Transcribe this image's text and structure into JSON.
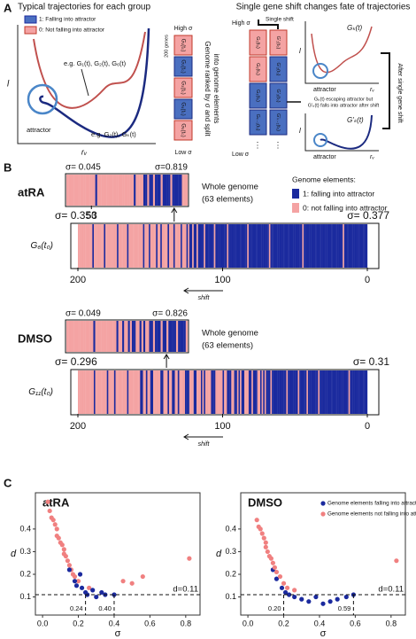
{
  "panel_a": {
    "label": "A",
    "left": {
      "title": "Typical trajectories for each group",
      "legend": [
        "1: Falling into attractor",
        "0: Not falling into attractor"
      ],
      "y_label": "l",
      "x_label": "rᵥ",
      "annotations": [
        "e.g. G₁(t), G₂(t), G₆(t)",
        "attractor",
        "e.g. G₂(t), Gₖ(t)"
      ]
    },
    "middle": {
      "genes": "200 genes",
      "high": "High σ",
      "low": "Low σ",
      "caption": [
        "Genome ranked by σ and split",
        "into genome elements"
      ],
      "boxes": [
        "G₁(t₀)",
        "G₂(t₀)",
        "G₃(t₀)",
        "G₄(t₀)",
        "G₅(t₀)"
      ]
    },
    "right": {
      "title": "Single gene shift changes fate of trajectories",
      "high": "High σ",
      "low": "Low σ",
      "shift": "Single shift",
      "col1": [
        "G₁(t₀)",
        "G₂(t₀)",
        "G₃(t₀)",
        "Gₖ₋₁(t₀)"
      ],
      "col2": [
        "G'₁(t₀)",
        "G'₂(t₀)",
        "G'₃(t₀)",
        "G'ₖ₋₁(t₀)"
      ],
      "dots": "⋮",
      "note": [
        "Gₖ(t) escaping attractor but",
        "G'ₖ(t) falls into attractor after shift"
      ],
      "top_label": "Gₖ(t)",
      "bottom_label": "G'ₖ(t)",
      "attractor": "attractor",
      "side": "After single gene shift",
      "y_label": "l",
      "x_label": "rᵥ"
    }
  },
  "panel_b": {
    "label": "B",
    "legend": {
      "title": "Genome elements:",
      "items": [
        {
          "label": "1: falling into attractor",
          "color": "#1b2a9e"
        },
        {
          "label": "0: not falling into attractor",
          "color": "#f4a3a3"
        }
      ]
    },
    "groups": [
      {
        "name": "atRA",
        "whole": {
          "sigma_left": "σ= 0.045",
          "sigma_right": "σ=0.819",
          "caption": [
            "Whole genome",
            "(63 elements)"
          ],
          "xlim": [
            63,
            0
          ],
          "xticks": [
            50
          ],
          "marker": {
            "label": "G₆(t₀)",
            "value": 7
          },
          "values": [
            0,
            0,
            0,
            0,
            0,
            0,
            0,
            0,
            0,
            0,
            0,
            0,
            0,
            0,
            0,
            1,
            0,
            0,
            0,
            0,
            0,
            0,
            0,
            0,
            0,
            0,
            0,
            0,
            0,
            0,
            0,
            0,
            0,
            0,
            0,
            1,
            0,
            0,
            0,
            0,
            1,
            1,
            0,
            1,
            1,
            0,
            1,
            1,
            1,
            0,
            1,
            1,
            1,
            1,
            0,
            1,
            1,
            1,
            1,
            1,
            0,
            0,
            0
          ]
        },
        "shift": {
          "sigma_left": "σ= 0.353",
          "sigma_right": "σ= 0.377",
          "y_label": "G₆(t₀)",
          "xlim": [
            200,
            0
          ],
          "xticks": [
            200,
            100,
            0
          ],
          "arrow": "shift",
          "values": [
            0,
            0,
            0,
            0,
            0,
            0,
            0,
            0,
            0,
            0,
            1,
            0,
            0,
            0,
            0,
            0,
            0,
            0,
            1,
            0,
            0,
            0,
            0,
            0,
            0,
            0,
            0,
            1,
            0,
            0,
            0,
            0,
            0,
            0,
            1,
            0,
            0,
            0,
            0,
            0,
            0,
            0,
            0,
            0,
            0,
            1,
            0,
            0,
            0,
            1,
            0,
            0,
            0,
            0,
            1,
            0,
            0,
            1,
            0,
            0,
            0,
            0,
            1,
            0,
            0,
            0,
            1,
            0,
            0,
            0,
            0,
            1,
            0,
            0,
            0,
            1,
            0,
            1,
            1,
            0,
            1,
            1,
            0,
            1,
            1,
            1,
            1,
            0,
            1,
            1,
            1,
            1,
            1,
            1,
            0,
            1,
            1,
            1,
            1,
            1,
            1,
            1,
            1,
            0,
            1,
            1,
            1,
            1,
            1,
            1,
            1,
            1,
            1,
            1,
            1,
            1,
            1,
            0,
            1,
            1,
            1,
            1,
            1,
            1,
            1,
            1,
            1,
            1,
            1,
            1,
            1,
            1,
            0,
            1,
            1,
            1,
            1,
            1,
            1,
            1,
            1,
            1,
            1,
            1,
            1,
            1,
            1,
            1,
            1,
            1,
            1,
            1,
            1,
            1,
            1,
            0,
            1,
            1,
            1,
            1,
            1,
            1,
            1,
            1,
            1,
            1,
            1,
            1,
            1,
            1,
            1,
            1,
            1,
            1,
            1,
            1,
            1,
            1,
            1,
            1,
            1,
            1,
            1,
            0,
            1,
            1,
            1,
            1,
            1,
            1,
            1,
            1,
            1,
            1,
            1,
            1,
            1,
            1,
            1,
            1
          ]
        }
      },
      {
        "name": "DMSO",
        "whole": {
          "sigma_left": "σ= 0.049",
          "sigma_right": "σ= 0.826",
          "caption": [
            "Whole genome",
            "(63 elements)"
          ],
          "xlim": [
            63,
            0
          ],
          "xticks": [],
          "marker": {
            "label": "G₁₁(t₀)",
            "value": 11
          },
          "values": [
            0,
            0,
            0,
            0,
            0,
            0,
            0,
            0,
            0,
            0,
            0,
            0,
            0,
            0,
            1,
            0,
            0,
            0,
            0,
            0,
            0,
            0,
            0,
            0,
            0,
            0,
            1,
            0,
            0,
            1,
            0,
            0,
            1,
            0,
            1,
            1,
            0,
            0,
            1,
            0,
            1,
            0,
            0,
            1,
            1,
            0,
            1,
            1,
            1,
            0,
            1,
            1,
            0,
            1,
            1,
            1,
            1,
            0,
            1,
            1,
            1,
            1,
            0
          ]
        },
        "shift": {
          "sigma_left": "σ= 0.296",
          "sigma_right": "σ= 0.31",
          "y_label": "G₁₁(t₀)",
          "xlim": [
            200,
            0
          ],
          "xticks": [
            200,
            100,
            0
          ],
          "arrow": "shift",
          "values": [
            0,
            0,
            0,
            0,
            0,
            0,
            0,
            0,
            0,
            0,
            0,
            1,
            0,
            0,
            0,
            0,
            0,
            0,
            0,
            0,
            1,
            0,
            0,
            0,
            0,
            1,
            0,
            0,
            0,
            0,
            0,
            0,
            0,
            0,
            1,
            0,
            0,
            0,
            0,
            0,
            0,
            0,
            0,
            1,
            1,
            0,
            0,
            1,
            0,
            0,
            1,
            1,
            0,
            0,
            0,
            0,
            0,
            1,
            1,
            0,
            0,
            0,
            1,
            0,
            0,
            1,
            1,
            0,
            0,
            1,
            0,
            0,
            0,
            0,
            1,
            1,
            1,
            0,
            0,
            0,
            1,
            1,
            0,
            0,
            0,
            1,
            0,
            1,
            0,
            0,
            0,
            0,
            1,
            1,
            1,
            0,
            0,
            0,
            0,
            0,
            1,
            0,
            0,
            1,
            1,
            1,
            0,
            0,
            1,
            1,
            0,
            1,
            0,
            1,
            1,
            0,
            0,
            0,
            1,
            1,
            0,
            1,
            1,
            1,
            0,
            0,
            1,
            0,
            1,
            0,
            1,
            1,
            1,
            0,
            1,
            1,
            1,
            1,
            1,
            1,
            1,
            1,
            1,
            1,
            0,
            1,
            1,
            1,
            1,
            1,
            1,
            1,
            0,
            1,
            1,
            1,
            1,
            1,
            0,
            1,
            1,
            1,
            1,
            1,
            1,
            1,
            0,
            1,
            1,
            1,
            1,
            1,
            1,
            1,
            1,
            1,
            1,
            1,
            1,
            1,
            1,
            1,
            1,
            1,
            1,
            1,
            1,
            0,
            1,
            1,
            1,
            1,
            1,
            1,
            1,
            1,
            1,
            1,
            1,
            1
          ]
        }
      }
    ]
  },
  "panel_c": {
    "label": "C"
  },
  "chart_data": [
    {
      "type": "scatter",
      "title": "atRA",
      "x_label": "σ",
      "y_label": "d",
      "xlim": [
        -0.04,
        0.88
      ],
      "ylim": [
        0.02,
        0.56
      ],
      "xticks": [
        {
          "value": 0,
          "label": "0.0"
        },
        0.2,
        0.4,
        0.6,
        0.8
      ],
      "yticks": [
        0.1,
        0.2,
        0.3,
        0.4
      ],
      "hline": {
        "value": 0.11,
        "label": "d=0.11"
      },
      "vlines": [
        {
          "value": 0.24,
          "label": "0.24"
        },
        {
          "value": 0.4,
          "label": "0.40"
        }
      ],
      "legend": false,
      "series": [
        {
          "color": "#f08080",
          "x": [
            0.03,
            0.04,
            0.05,
            0.06,
            0.07,
            0.08,
            0.08,
            0.09,
            0.1,
            0.11,
            0.12,
            0.12,
            0.13,
            0.14,
            0.15,
            0.16,
            0.17,
            0.18,
            0.2,
            0.26,
            0.45,
            0.5,
            0.56,
            0.82
          ],
          "y": [
            0.52,
            0.48,
            0.45,
            0.44,
            0.42,
            0.4,
            0.37,
            0.36,
            0.34,
            0.33,
            0.31,
            0.29,
            0.28,
            0.26,
            0.24,
            0.22,
            0.2,
            0.19,
            0.17,
            0.14,
            0.17,
            0.16,
            0.19,
            0.27
          ]
        },
        {
          "color": "#1b2a9e",
          "x": [
            0.15,
            0.18,
            0.19,
            0.21,
            0.22,
            0.24,
            0.25,
            0.28,
            0.3,
            0.33,
            0.35,
            0.4
          ],
          "y": [
            0.22,
            0.17,
            0.15,
            0.2,
            0.14,
            0.12,
            0.11,
            0.13,
            0.1,
            0.12,
            0.11,
            0.11
          ]
        }
      ]
    },
    {
      "type": "scatter",
      "title": "DMSO",
      "x_label": "σ",
      "y_label": "d",
      "xlim": [
        -0.04,
        0.88
      ],
      "ylim": [
        0.02,
        0.56
      ],
      "xticks": [
        {
          "value": 0,
          "label": "0.0"
        },
        0.2,
        0.4,
        0.6,
        0.8
      ],
      "yticks": [
        0.1,
        0.2,
        0.3,
        0.4
      ],
      "hline": {
        "value": 0.11,
        "label": "d=0.11"
      },
      "vlines": [
        {
          "value": 0.2,
          "label": "0.20"
        },
        {
          "value": 0.59,
          "label": "0.59"
        }
      ],
      "legend": true,
      "series": [
        {
          "name": "Genome elements falling into attractor",
          "color": "#1b2a9e",
          "x": [
            0.14,
            0.16,
            0.19,
            0.21,
            0.23,
            0.26,
            0.3,
            0.34,
            0.38,
            0.42,
            0.46,
            0.5,
            0.55,
            0.59
          ],
          "y": [
            0.22,
            0.18,
            0.14,
            0.12,
            0.11,
            0.1,
            0.09,
            0.08,
            0.1,
            0.07,
            0.08,
            0.09,
            0.1,
            0.11
          ]
        },
        {
          "name": "Genome elements not falling into attractor",
          "color": "#f08080",
          "x": [
            0.05,
            0.06,
            0.07,
            0.08,
            0.09,
            0.1,
            0.1,
            0.11,
            0.12,
            0.13,
            0.14,
            0.15,
            0.16,
            0.18,
            0.2,
            0.22,
            0.26,
            0.83
          ],
          "y": [
            0.44,
            0.41,
            0.4,
            0.38,
            0.36,
            0.34,
            0.32,
            0.3,
            0.28,
            0.27,
            0.25,
            0.23,
            0.21,
            0.19,
            0.16,
            0.14,
            0.13,
            0.26
          ]
        }
      ]
    }
  ]
}
